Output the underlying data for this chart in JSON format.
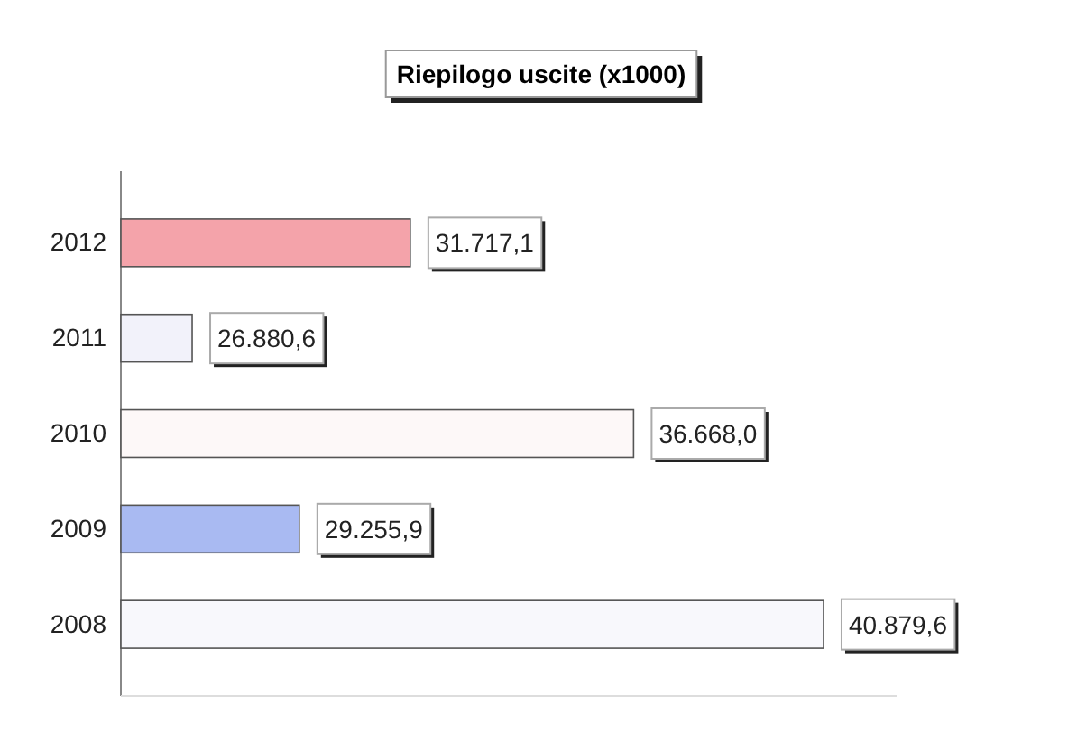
{
  "chart_data": {
    "type": "bar",
    "orientation": "horizontal",
    "title": "Riepilogo uscite (x1000)",
    "categories": [
      "2012",
      "2011",
      "2010",
      "2009",
      "2008"
    ],
    "values": [
      31717.1,
      26880.6,
      36668.0,
      29255.9,
      40879.6
    ],
    "value_labels": [
      "31.717,1",
      "26.880,6",
      "36.668,0",
      "29.255,9",
      "40.879,6"
    ],
    "colors": [
      "#f4a3aa",
      "#f2f2fa",
      "#fdf8f8",
      "#a9baf2",
      "#f8f8fc"
    ],
    "xlim": [
      25300,
      42500
    ]
  }
}
